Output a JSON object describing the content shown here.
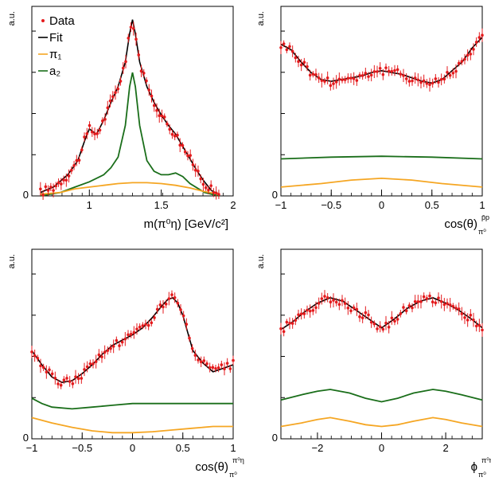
{
  "colors": {
    "data": "#e41a1c",
    "fit": "#000000",
    "pi1": "#f5a623",
    "a2": "#1a6e1a"
  },
  "chart_data": [
    {
      "panel": "top-left",
      "type": "line",
      "ylabel": "a.u.",
      "xlabel_main": "m(π⁰η) [GeV/c²]",
      "xlabel_sub": "",
      "xlim": [
        0.6,
        2.0
      ],
      "ylim": [
        0,
        1.0
      ],
      "xticks": [
        1,
        1.5,
        2
      ],
      "xtick_labels": [
        "1",
        "1.5",
        "2"
      ],
      "ytick_label": "0",
      "legend": {
        "placement": "top-left",
        "entries": [
          "Data",
          "Fit",
          "π₁",
          "a₂"
        ]
      },
      "series": [
        {
          "name": "Fit",
          "kind": "fit",
          "x": [
            0.66,
            0.75,
            0.85,
            0.92,
            0.97,
            1.0,
            1.05,
            1.1,
            1.15,
            1.2,
            1.25,
            1.28,
            1.3,
            1.32,
            1.35,
            1.4,
            1.45,
            1.5,
            1.55,
            1.6,
            1.65,
            1.7,
            1.75,
            1.8,
            1.85,
            1.9
          ],
          "y": [
            0.02,
            0.05,
            0.12,
            0.2,
            0.32,
            0.38,
            0.35,
            0.43,
            0.53,
            0.62,
            0.76,
            0.92,
            1.0,
            0.92,
            0.76,
            0.62,
            0.53,
            0.46,
            0.4,
            0.35,
            0.28,
            0.21,
            0.14,
            0.08,
            0.03,
            0.01
          ]
        },
        {
          "name": "a₂",
          "kind": "a2",
          "x": [
            0.66,
            0.8,
            0.9,
            1.0,
            1.1,
            1.15,
            1.2,
            1.25,
            1.28,
            1.3,
            1.32,
            1.35,
            1.4,
            1.45,
            1.5,
            1.55,
            1.6,
            1.65,
            1.7,
            1.8,
            1.9
          ],
          "y": [
            0.0,
            0.02,
            0.05,
            0.08,
            0.12,
            0.16,
            0.22,
            0.4,
            0.62,
            0.7,
            0.62,
            0.4,
            0.2,
            0.14,
            0.12,
            0.12,
            0.13,
            0.11,
            0.07,
            0.02,
            0.0
          ]
        },
        {
          "name": "π₁",
          "kind": "pi1",
          "x": [
            0.66,
            0.8,
            0.9,
            1.0,
            1.1,
            1.2,
            1.3,
            1.4,
            1.5,
            1.6,
            1.7,
            1.8,
            1.9
          ],
          "y": [
            0.01,
            0.02,
            0.04,
            0.05,
            0.06,
            0.07,
            0.075,
            0.075,
            0.07,
            0.06,
            0.045,
            0.025,
            0.01
          ]
        }
      ]
    },
    {
      "panel": "top-right",
      "type": "line",
      "ylabel": "a.u.",
      "xlabel_main": "cos(θ)",
      "xlabel_sub": "π⁰",
      "xlabel_sup": "p̄p",
      "xlim": [
        -1,
        1
      ],
      "ylim": [
        0,
        1.0
      ],
      "xticks": [
        -1,
        -0.5,
        0,
        0.5,
        1
      ],
      "xtick_labels": [
        "−1",
        "−0.5",
        "0",
        "0.5",
        "1"
      ],
      "ytick_label": "0",
      "series": [
        {
          "name": "Fit",
          "kind": "fit",
          "x": [
            -1,
            -0.9,
            -0.8,
            -0.7,
            -0.6,
            -0.5,
            -0.4,
            -0.3,
            -0.2,
            -0.1,
            0,
            0.1,
            0.2,
            0.3,
            0.4,
            0.5,
            0.6,
            0.7,
            0.8,
            0.9,
            1
          ],
          "y": [
            0.86,
            0.83,
            0.76,
            0.7,
            0.66,
            0.65,
            0.66,
            0.67,
            0.68,
            0.7,
            0.71,
            0.7,
            0.69,
            0.67,
            0.65,
            0.64,
            0.66,
            0.71,
            0.76,
            0.84,
            0.9
          ]
        },
        {
          "name": "a₂",
          "kind": "a2",
          "x": [
            -1,
            -0.5,
            0,
            0.5,
            1
          ],
          "y": [
            0.21,
            0.22,
            0.225,
            0.22,
            0.21
          ]
        },
        {
          "name": "π₁",
          "kind": "pi1",
          "x": [
            -1,
            -0.6,
            -0.3,
            0,
            0.3,
            0.6,
            1
          ],
          "y": [
            0.05,
            0.07,
            0.09,
            0.1,
            0.09,
            0.07,
            0.05
          ]
        }
      ]
    },
    {
      "panel": "bottom-left",
      "type": "line",
      "ylabel": "a.u.",
      "xlabel_main": "cos(θ)",
      "xlabel_sub": "π⁰",
      "xlabel_sup": "π⁰η",
      "xlim": [
        -1,
        1
      ],
      "ylim": [
        0,
        1.0
      ],
      "xticks": [
        -1,
        -0.5,
        0,
        0.5,
        1
      ],
      "xtick_labels": [
        "−1",
        "−0.5",
        "0",
        "0.5",
        "1"
      ],
      "ytick_label": "0",
      "series": [
        {
          "name": "Fit",
          "kind": "fit",
          "x": [
            -1,
            -0.9,
            -0.8,
            -0.7,
            -0.6,
            -0.5,
            -0.4,
            -0.3,
            -0.2,
            -0.1,
            0,
            0.1,
            0.2,
            0.3,
            0.35,
            0.4,
            0.45,
            0.5,
            0.55,
            0.6,
            0.7,
            0.8,
            0.9,
            1
          ],
          "y": [
            0.5,
            0.42,
            0.35,
            0.32,
            0.33,
            0.37,
            0.42,
            0.48,
            0.53,
            0.56,
            0.59,
            0.63,
            0.69,
            0.76,
            0.79,
            0.8,
            0.77,
            0.7,
            0.6,
            0.5,
            0.43,
            0.38,
            0.4,
            0.42
          ]
        },
        {
          "name": "a₂",
          "kind": "a2",
          "x": [
            -1,
            -0.9,
            -0.8,
            -0.6,
            -0.4,
            -0.2,
            0,
            0.2,
            0.4,
            0.6,
            0.8,
            1
          ],
          "y": [
            0.23,
            0.2,
            0.18,
            0.17,
            0.18,
            0.19,
            0.2,
            0.2,
            0.2,
            0.2,
            0.2,
            0.2
          ]
        },
        {
          "name": "π₁",
          "kind": "pi1",
          "x": [
            -1,
            -0.8,
            -0.6,
            -0.4,
            -0.2,
            0,
            0.2,
            0.4,
            0.6,
            0.8,
            1
          ],
          "y": [
            0.12,
            0.09,
            0.065,
            0.045,
            0.035,
            0.035,
            0.04,
            0.05,
            0.06,
            0.07,
            0.07
          ]
        }
      ]
    },
    {
      "panel": "bottom-right",
      "type": "line",
      "ylabel": "a.u.",
      "xlabel_main": "ϕ",
      "xlabel_sub": "π⁰",
      "xlabel_sup": "π⁰η",
      "xlim": [
        -3.14,
        3.14
      ],
      "ylim": [
        0,
        1.0
      ],
      "xticks": [
        -2,
        0,
        2
      ],
      "xtick_labels": [
        "−2",
        "0",
        "2"
      ],
      "ytick_label": "0",
      "series": [
        {
          "name": "Fit",
          "kind": "fit",
          "x": [
            -3.14,
            -2.8,
            -2.4,
            -2.0,
            -1.6,
            -1.2,
            -0.8,
            -0.4,
            0,
            0.4,
            0.8,
            1.2,
            1.6,
            2.0,
            2.4,
            2.8,
            3.14
          ],
          "y": [
            0.62,
            0.66,
            0.72,
            0.77,
            0.8,
            0.78,
            0.73,
            0.68,
            0.63,
            0.68,
            0.74,
            0.78,
            0.8,
            0.77,
            0.73,
            0.68,
            0.63
          ]
        },
        {
          "name": "a₂",
          "kind": "a2",
          "x": [
            -3.14,
            -2.5,
            -2.0,
            -1.6,
            -1.0,
            -0.5,
            0,
            0.5,
            1.0,
            1.6,
            2.0,
            2.5,
            3.14
          ],
          "y": [
            0.22,
            0.25,
            0.27,
            0.28,
            0.26,
            0.23,
            0.21,
            0.23,
            0.26,
            0.28,
            0.27,
            0.25,
            0.22
          ]
        },
        {
          "name": "π₁",
          "kind": "pi1",
          "x": [
            -3.14,
            -2.5,
            -2.0,
            -1.6,
            -1.0,
            -0.5,
            0,
            0.5,
            1.0,
            1.6,
            2.0,
            2.5,
            3.14
          ],
          "y": [
            0.07,
            0.09,
            0.11,
            0.12,
            0.1,
            0.08,
            0.07,
            0.08,
            0.1,
            0.12,
            0.11,
            0.09,
            0.07
          ]
        }
      ]
    }
  ]
}
